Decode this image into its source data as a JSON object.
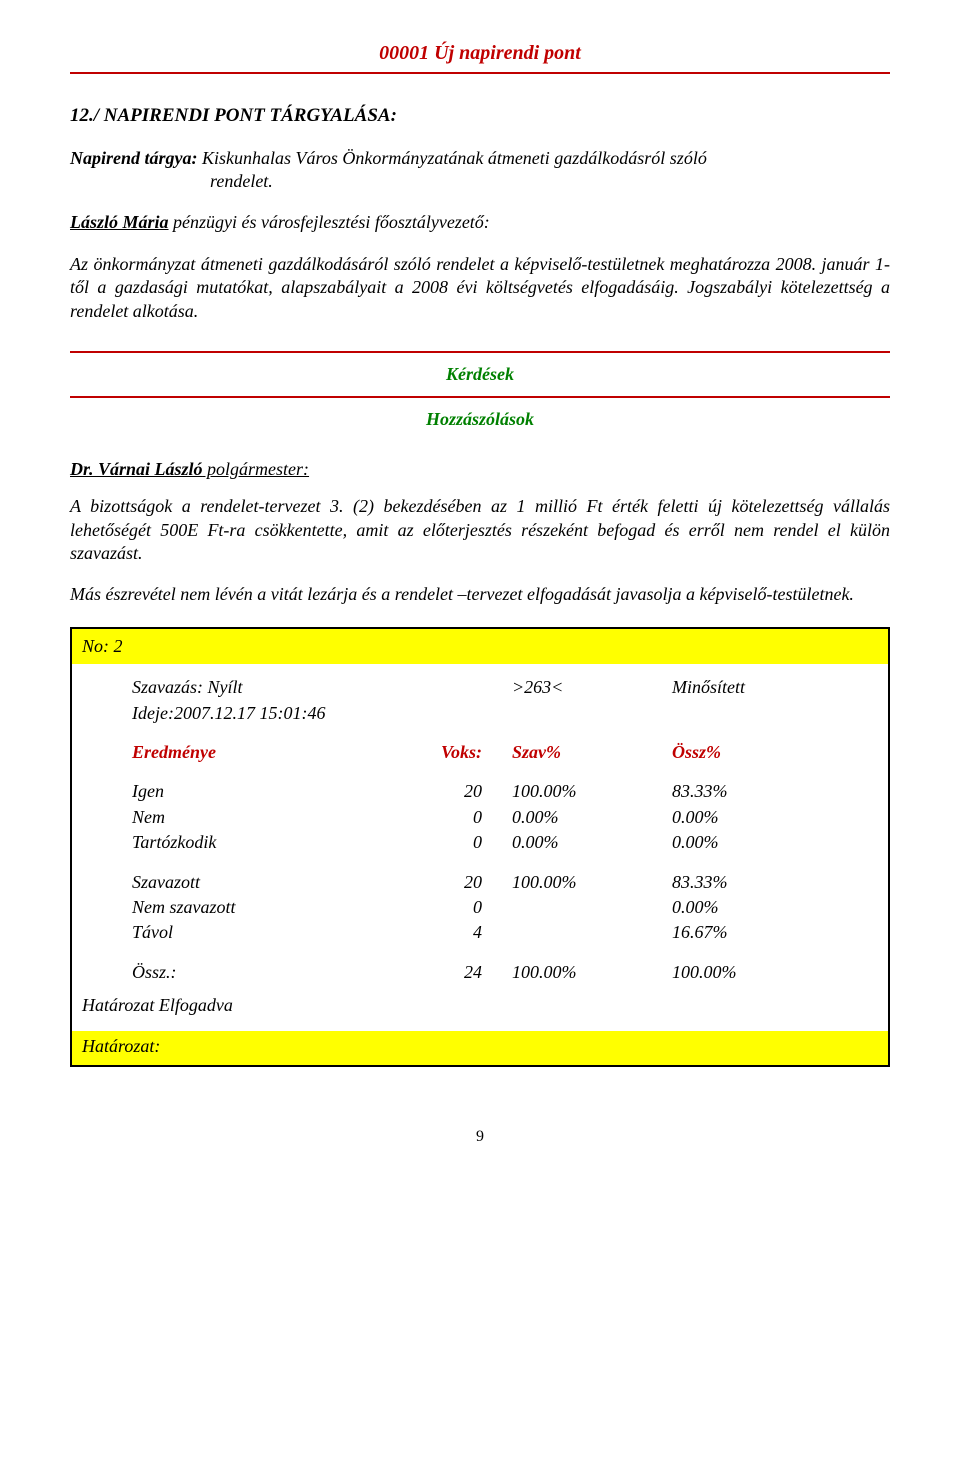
{
  "header": {
    "title": "00001 Új napirendi pont"
  },
  "section_title": "12./ NAPIRENDI PONT TÁRGYALÁSA:",
  "napirend": {
    "label": "Napirend tárgya:",
    "text1": "Kiskunhalas Város Önkormányzatának átmeneti gazdálkodásról szóló",
    "text2": "rendelet."
  },
  "laszlo": {
    "name": "László Mária",
    "role": " pénzügyi és városfejlesztési főosztályvezető:"
  },
  "body1": "Az önkormányzat átmeneti gazdálkodásáról szóló rendelet a képviselő-testületnek meghatározza 2008. január 1-től a gazdasági mutatókat, alapszabályait a 2008 évi költségvetés elfogadásáig. Jogszabályi kötelezettség a rendelet alkotása.",
  "qa": {
    "kerdesek": "Kérdések",
    "hozzaszolasok": "Hozzászólások"
  },
  "varnai": {
    "name": "Dr. Várnai László",
    "role": "  polgármester:"
  },
  "body2": "A bizottságok a rendelet-tervezet 3. (2) bekezdésében az 1 millió Ft érték feletti új kötelezettség vállalás lehetőségét 500E Ft-ra csökkentette, amit az előterjesztés részeként befogad és erről nem rendel el külön szavazást.",
  "body3": "Más észrevétel nem lévén a vitát lezárja és a rendelet –tervezet elfogadását javasolja a képviselő-testületnek.",
  "vote": {
    "no_label": "No: 2",
    "szavazas_label": "Szavazás: Nyílt",
    "code": ">263<",
    "minositett": "Minősített",
    "ideje": "Ideje:2007.12.17 15:01:46",
    "hdr": {
      "eredmenye": "Eredménye",
      "voks": "Voks:",
      "szav": "Szav%",
      "ossz": "Össz%"
    },
    "rows": [
      {
        "label": "Igen",
        "voks": "20",
        "szav": "100.00%",
        "ossz": "83.33%"
      },
      {
        "label": "Nem",
        "voks": "0",
        "szav": "0.00%",
        "ossz": "0.00%"
      },
      {
        "label": "Tartózkodik",
        "voks": "0",
        "szav": "0.00%",
        "ossz": "0.00%"
      }
    ],
    "sum": [
      {
        "label": "Szavazott",
        "voks": "20",
        "szav": "100.00%",
        "ossz": "83.33%"
      },
      {
        "label": "Nem szavazott",
        "voks": "0",
        "szav": "",
        "ossz": "0.00%"
      },
      {
        "label": "Távol",
        "voks": "4",
        "szav": "",
        "ossz": "16.67%"
      }
    ],
    "total": {
      "label": "Össz.:",
      "voks": "24",
      "szav": "100.00%",
      "ossz": "100.00%"
    },
    "result": "Határozat Elfogadva",
    "hatarozat": "Határozat:"
  },
  "page_number": "9"
}
